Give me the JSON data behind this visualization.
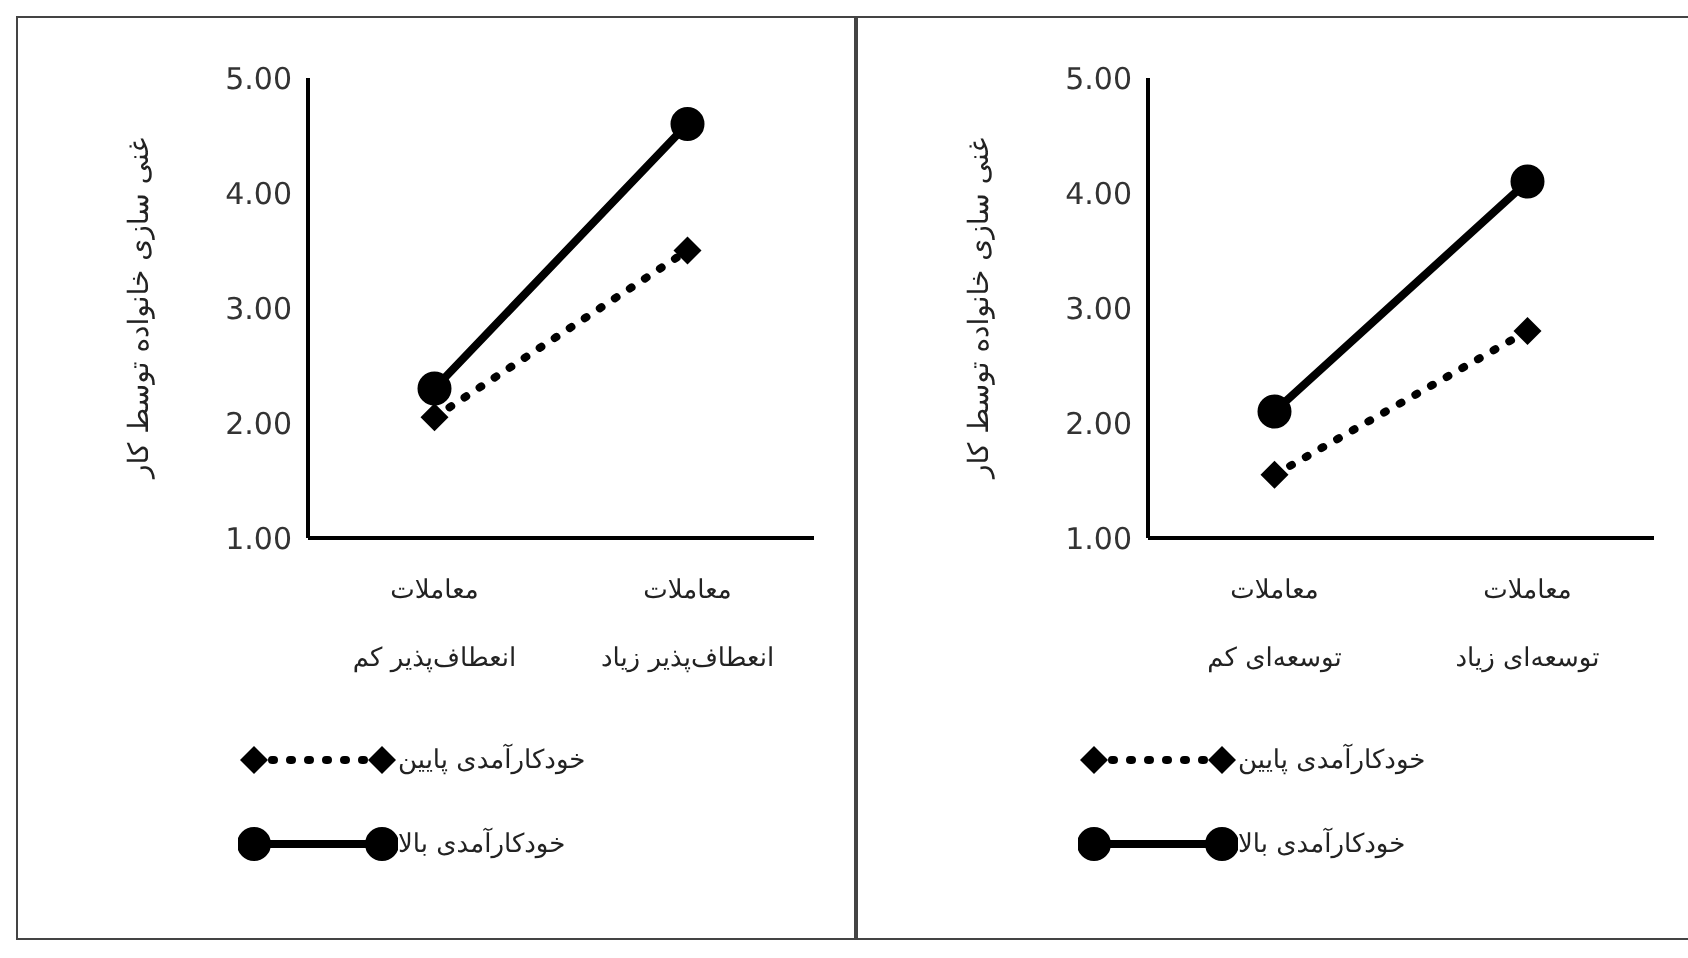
{
  "chart_data": [
    {
      "type": "line",
      "ylabel": "غنی سازی خانواده توسط کار",
      "categories": [
        "معاملات\nانعطاف‌پذیر کم",
        "معاملات\nانعطاف‌پذیر زیاد"
      ],
      "ylim": [
        1,
        5
      ],
      "yticks": [
        {
          "value": 1,
          "label": "1.00"
        },
        {
          "value": 2,
          "label": "2.00"
        },
        {
          "value": 3,
          "label": "3.00"
        },
        {
          "value": 4,
          "label": "4.00"
        },
        {
          "value": 5,
          "label": "5.00"
        }
      ],
      "grid": false,
      "legend": "bottom",
      "series": [
        {
          "name": "خودکارآمدی پایین",
          "color": "#000000",
          "values": [
            2.05,
            3.5
          ],
          "marker": "diamond",
          "line_style": "dotted"
        },
        {
          "name": "خودکارآمدی بالا",
          "color": "#000000",
          "values": [
            2.3,
            4.6
          ],
          "marker": "circle",
          "line_style": "solid"
        }
      ]
    },
    {
      "type": "line",
      "ylabel": "غنی سازی خانواده توسط کار",
      "categories": [
        "معاملات\nتوسعه‌ای کم",
        "معاملات\nتوسعه‌ای زیاد"
      ],
      "ylim": [
        1,
        5
      ],
      "yticks": [
        {
          "value": 1,
          "label": "1.00"
        },
        {
          "value": 2,
          "label": "2.00"
        },
        {
          "value": 3,
          "label": "3.00"
        },
        {
          "value": 4,
          "label": "4.00"
        },
        {
          "value": 5,
          "label": "5.00"
        }
      ],
      "grid": false,
      "legend": "bottom",
      "series": [
        {
          "name": "خودکارآمدی پایین",
          "color": "#000000",
          "values": [
            1.55,
            2.8
          ],
          "marker": "diamond",
          "line_style": "dotted"
        },
        {
          "name": "خودکارآمدی بالا",
          "color": "#000000",
          "values": [
            2.1,
            4.1
          ],
          "marker": "circle",
          "line_style": "solid"
        }
      ]
    }
  ]
}
